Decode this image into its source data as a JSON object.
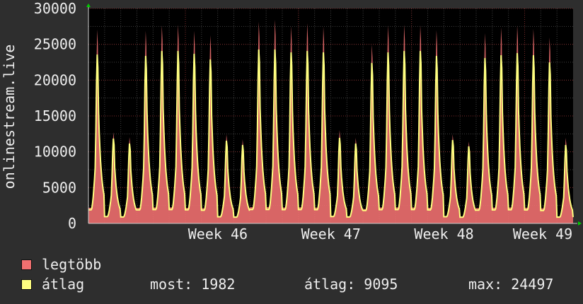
{
  "chart_data": {
    "type": "area",
    "ylabel": "onlinestream.live",
    "ylim": [
      0,
      30000
    ],
    "yticks": [
      "0",
      "5000",
      "10000",
      "15000",
      "20000",
      "25000",
      "30000"
    ],
    "xticks": [
      "Week 46",
      "Week 47",
      "Week 48",
      "Week 49"
    ],
    "grid": true,
    "series": [
      {
        "name": "legtöbb",
        "color": "#f07070",
        "daily_peaks": [
          27200,
          12800,
          12100,
          27000,
          27800,
          27900,
          27000,
          26400,
          12500,
          11800,
          28300,
          28600,
          27700,
          28100,
          27600,
          13100,
          12000,
          25100,
          27800,
          27900,
          27800,
          27100,
          12500,
          11500,
          26700,
          27500,
          27800,
          27300,
          26100,
          12000
        ]
      },
      {
        "name": "átlag",
        "color": "#ffff80",
        "daily_peaks": [
          23700,
          11900,
          11200,
          23500,
          24200,
          24200,
          23800,
          23000,
          11600,
          11000,
          24400,
          24400,
          24000,
          24200,
          24000,
          12000,
          11200,
          22500,
          24000,
          24200,
          24200,
          23500,
          11700,
          10800,
          23200,
          23600,
          23900,
          23600,
          22600,
          11000
        ]
      }
    ],
    "legend": [
      {
        "label": "legtöbb",
        "color": "#f07070"
      },
      {
        "label": "átlag",
        "color": "#ffff80"
      }
    ],
    "stats": {
      "most": "most: 1982",
      "atlag": "átlag: 9095",
      "max": "max: 24497"
    }
  }
}
